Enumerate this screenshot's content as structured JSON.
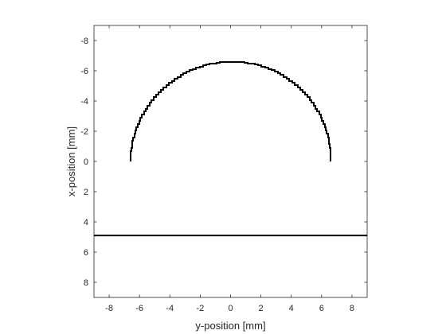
{
  "chart_data": {
    "type": "line",
    "xlabel": "y-position [mm]",
    "ylabel": "x-position [mm]",
    "xlim": [
      -9,
      9
    ],
    "ylim": [
      -9,
      9
    ],
    "y_axis_reversed": true,
    "grid": false,
    "box": true,
    "xticks": [
      -8,
      -6,
      -4,
      -2,
      0,
      2,
      4,
      6,
      8
    ],
    "yticks": [
      -8,
      -6,
      -4,
      -2,
      0,
      2,
      4,
      6,
      8
    ],
    "xtick_labels": [
      "-8",
      "-6",
      "-4",
      "-2",
      "0",
      "2",
      "4",
      "6",
      "8"
    ],
    "ytick_labels": [
      "-8",
      "-6",
      "-4",
      "-2",
      "0",
      "2",
      "4",
      "6",
      "8"
    ],
    "series": [
      {
        "kind": "semicircle-arc",
        "center": [
          0,
          0
        ],
        "radius": 6.6,
        "from_angle_deg": 0,
        "to_angle_deg": 180,
        "stroke": "#000000",
        "style": "stepped"
      },
      {
        "kind": "horizontal-line",
        "y": 4.9,
        "x": [
          -9,
          9
        ],
        "stroke": "#000000"
      }
    ]
  }
}
